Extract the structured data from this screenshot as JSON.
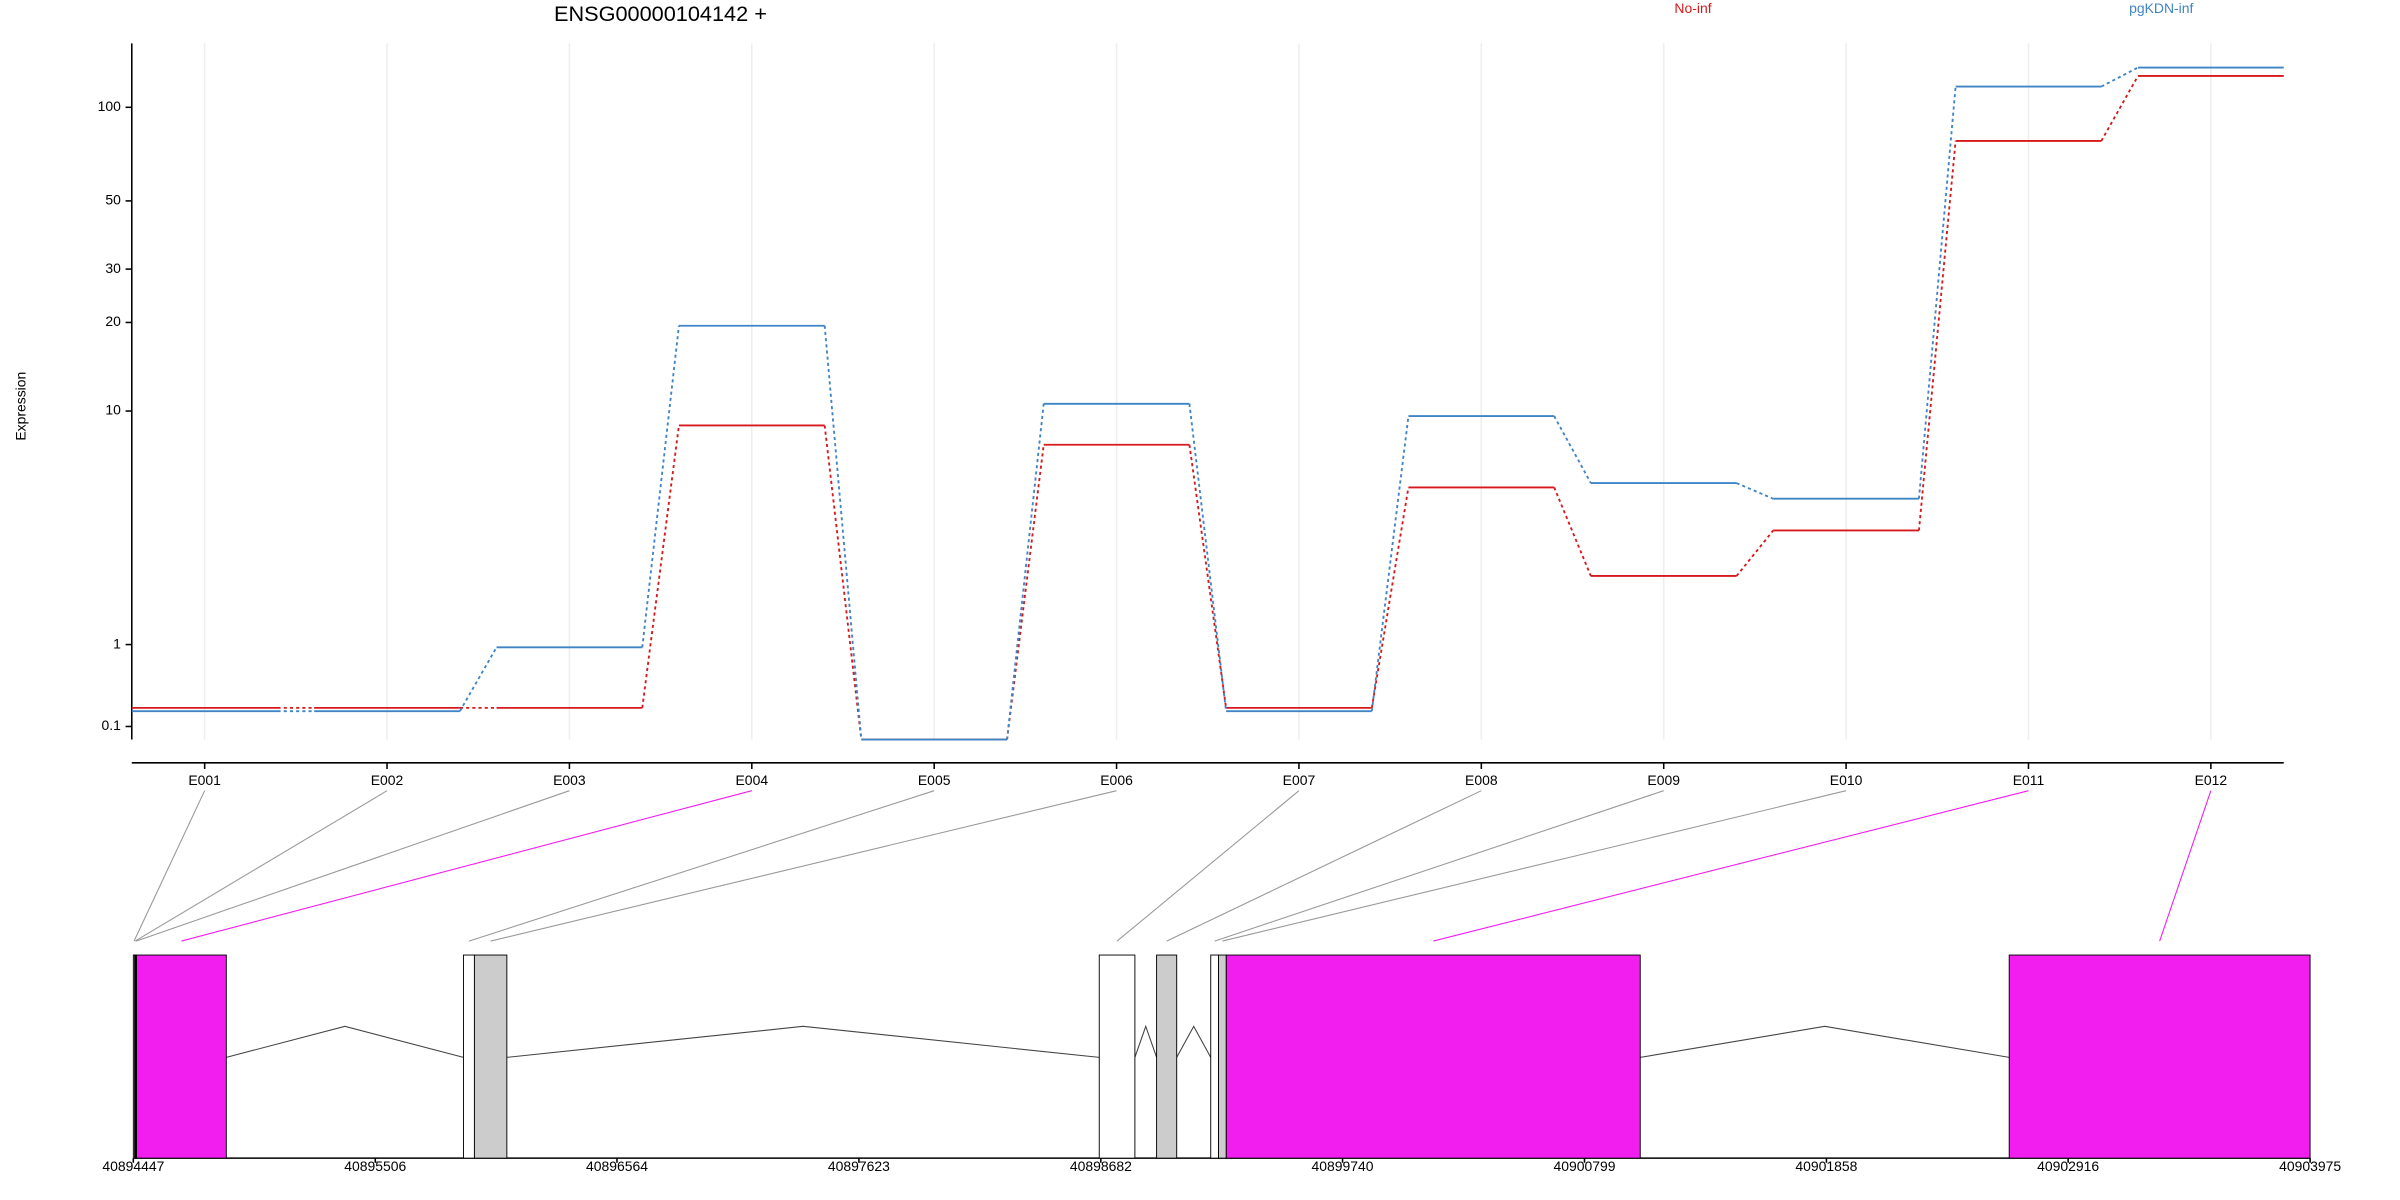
{
  "chart_data": {
    "type": "line",
    "title": "ENSG00000104142 +",
    "y_label": "Expression",
    "yscale": "log1p",
    "grid": true,
    "legend_position": "top-right",
    "categories": [
      "E001",
      "E002",
      "E003",
      "E004",
      "E005",
      "E006",
      "E007",
      "E008",
      "E009",
      "E010",
      "E011",
      "E012"
    ],
    "series": [
      {
        "name": "No-inf",
        "color": "#d7191c",
        "values": [
          0.26,
          0.26,
          0.26,
          8.9,
          0,
          7.6,
          0.26,
          5.3,
          2.3,
          3.6,
          78,
          126
        ]
      },
      {
        "name": "pgKDN-inf",
        "color": "#3f85c6",
        "values": [
          0.23,
          0.23,
          0.96,
          19.5,
          0,
          10.6,
          0.23,
          9.6,
          5.5,
          4.8,
          116.5,
          134
        ]
      }
    ],
    "ylim": [
      0,
      160
    ],
    "yticks": [
      0.1,
      1,
      10,
      20,
      30,
      50,
      100
    ],
    "gene_model": {
      "xlim": [
        40894447,
        40903975
      ],
      "xticks": [
        40894447,
        40895506,
        40896564,
        40897623,
        40898682,
        40899740,
        40900799,
        40901858,
        40902916,
        40903975
      ],
      "exons": [
        {
          "start": 40894447,
          "end": 40894453,
          "color": "#ffffff"
        },
        {
          "start": 40894453,
          "end": 40894457,
          "color": "#ffffff"
        },
        {
          "start": 40894457,
          "end": 40894461,
          "color": "#ffffff"
        },
        {
          "start": 40894461,
          "end": 40894854,
          "color": "#f21ef0"
        },
        {
          "start": 40895892,
          "end": 40895940,
          "color": "#ffffff"
        },
        {
          "start": 40895940,
          "end": 40896082,
          "color": "#cccccc"
        },
        {
          "start": 40898675,
          "end": 40898831,
          "color": "#ffffff"
        },
        {
          "start": 40898926,
          "end": 40899014,
          "color": "#cccccc"
        },
        {
          "start": 40899163,
          "end": 40899197,
          "color": "#ffffff"
        },
        {
          "start": 40899197,
          "end": 40899231,
          "color": "#cccccc"
        },
        {
          "start": 40899231,
          "end": 40901043,
          "color": "#f21ef0"
        },
        {
          "start": 40902658,
          "end": 40903975,
          "color": "#f21ef0"
        }
      ]
    }
  }
}
